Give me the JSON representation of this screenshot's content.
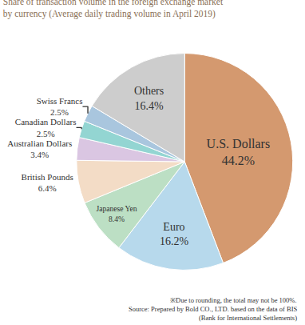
{
  "chart_data": {
    "type": "pie",
    "title": "Share of transaction volume in the foreign exchange market",
    "subtitle": "by currency (Average daily trading volume in April 2019)",
    "categories": [
      "U.S. Dollars",
      "Euro",
      "Japanese Yen",
      "British Pounds",
      "Australian Dollars",
      "Canadian Dollars",
      "Swiss Francs",
      "Others"
    ],
    "values": [
      44.2,
      16.2,
      8.4,
      6.4,
      3.4,
      2.5,
      2.5,
      16.4
    ],
    "value_labels": [
      "44.2%",
      "16.2%",
      "8.4%",
      "6.4%",
      "3.4%",
      "2.5%",
      "2.5%",
      "16.4%"
    ],
    "colors": [
      "#d4996f",
      "#b7d9ec",
      "#bcdfc4",
      "#f3dcc6",
      "#dac6e2",
      "#93d5d2",
      "#a9c6de",
      "#cdcdcd"
    ],
    "data_labels": true,
    "annotations": [
      "※Due to rounding, the total may not be 100%.",
      "Source: Prepared by Bold CO., LTD. based on the data of BIS",
      "(Bank for International Settlements)"
    ]
  }
}
